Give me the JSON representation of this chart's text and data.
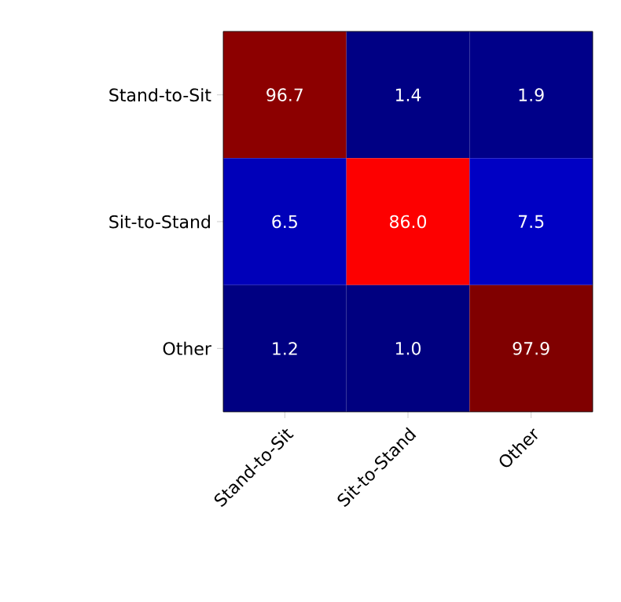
{
  "chart_data": {
    "type": "heatmap",
    "categories": [
      "Stand-to-Sit",
      "Sit-to-Stand",
      "Other"
    ],
    "y_categories": [
      "Stand-to-Sit",
      "Sit-to-Stand",
      "Other"
    ],
    "cells": [
      [
        96.7,
        1.4,
        1.9
      ],
      [
        6.5,
        86.0,
        7.5
      ],
      [
        1.2,
        1.0,
        97.9
      ]
    ],
    "cell_labels": [
      [
        "96.7",
        "1.4",
        "1.9"
      ],
      [
        "6.5",
        "86.0",
        "7.5"
      ],
      [
        "1.2",
        "1.0",
        "97.9"
      ]
    ]
  }
}
